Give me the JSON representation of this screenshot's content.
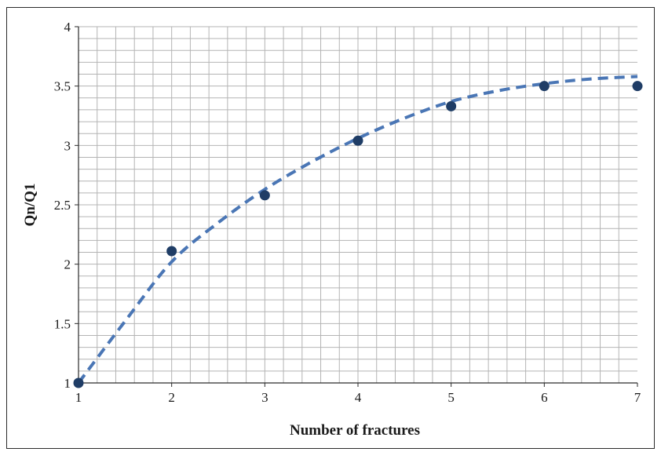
{
  "chart_data": {
    "type": "scatter",
    "title": "",
    "xlabel": "Number of fractures",
    "ylabel": "Qn/Q1",
    "xlim": [
      1,
      7
    ],
    "ylim": [
      1,
      4
    ],
    "xticks": [
      "1",
      "2",
      "3",
      "4",
      "5",
      "6",
      "7"
    ],
    "yticks": [
      "1",
      "1.5",
      "2",
      "2.5",
      "3",
      "3.5",
      "4"
    ],
    "grid": true,
    "legend": "none",
    "colors": {
      "points": "#1f3d66",
      "trend": "#4a76b5",
      "grid": "#b4b4b4",
      "axis": "#2b2b2b"
    },
    "series": [
      {
        "kind": "points",
        "x": [
          1,
          2,
          3,
          4,
          5,
          6,
          7
        ],
        "y": [
          1.0,
          2.11,
          2.58,
          3.04,
          3.33,
          3.5,
          3.5
        ]
      },
      {
        "kind": "dashed-trendline",
        "x": [
          1,
          1.5,
          2,
          2.5,
          3,
          3.5,
          4,
          4.5,
          5,
          5.5,
          6,
          6.5,
          7
        ],
        "y": [
          1.0,
          1.52,
          2.02,
          2.35,
          2.63,
          2.86,
          3.06,
          3.23,
          3.37,
          3.46,
          3.52,
          3.56,
          3.58
        ]
      }
    ]
  }
}
